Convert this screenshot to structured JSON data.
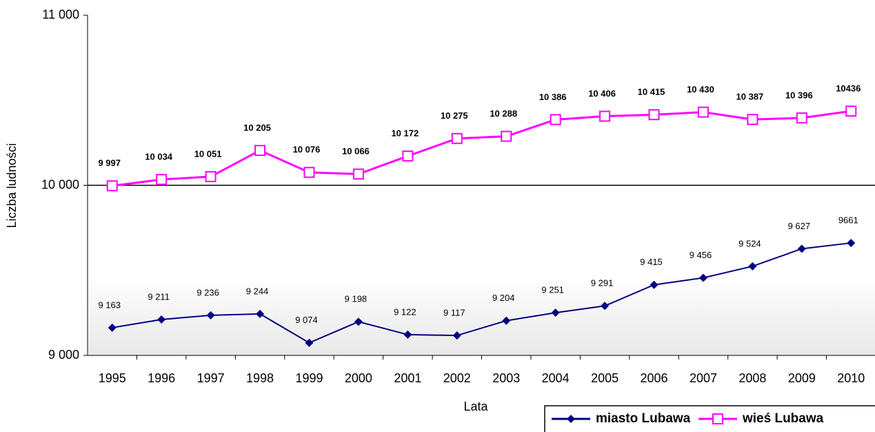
{
  "chart_data": {
    "type": "line",
    "x_label": "Lata",
    "y_label": "Liczba ludności",
    "categories": [
      "1995",
      "1996",
      "1997",
      "1998",
      "1999",
      "2000",
      "2001",
      "2002",
      "2003",
      "2004",
      "2005",
      "2006",
      "2007",
      "2008",
      "2009",
      "2010"
    ],
    "series": [
      {
        "name": "miasto Lubawa",
        "color": "#000080",
        "marker": "diamond",
        "values": [
          9163,
          9211,
          9236,
          9244,
          9074,
          9198,
          9122,
          9117,
          9204,
          9251,
          9291,
          9415,
          9456,
          9524,
          9627,
          9661
        ],
        "value_labels": [
          "9 163",
          "9 211",
          "9 236",
          "9 244",
          "9 074",
          "9 198",
          "9 122",
          "9 117",
          "9 204",
          "9 251",
          "9 291",
          "9 415",
          "9 456",
          "9 524",
          "9 627",
          "9661"
        ]
      },
      {
        "name": "wieś Lubawa",
        "color": "#ff00ff",
        "marker": "square",
        "values": [
          9997,
          10034,
          10051,
          10205,
          10076,
          10066,
          10172,
          10275,
          10288,
          10386,
          10406,
          10415,
          10430,
          10387,
          10396,
          10436
        ],
        "value_labels": [
          "9 997",
          "10 034",
          "10 051",
          "10 205",
          "10 076",
          "10 066",
          "10 172",
          "10 275",
          "10 288",
          "10 386",
          "10 406",
          "10 415",
          "10 430",
          "10 387",
          "10 396",
          "10436"
        ]
      }
    ],
    "ylim": [
      9000,
      11000
    ],
    "yticks": [
      {
        "value": 9000,
        "label": "9 000"
      },
      {
        "value": 10000,
        "label": "10 000"
      },
      {
        "value": 11000,
        "label": "11 000"
      }
    ],
    "grid": true,
    "legend": "bottom-right"
  }
}
